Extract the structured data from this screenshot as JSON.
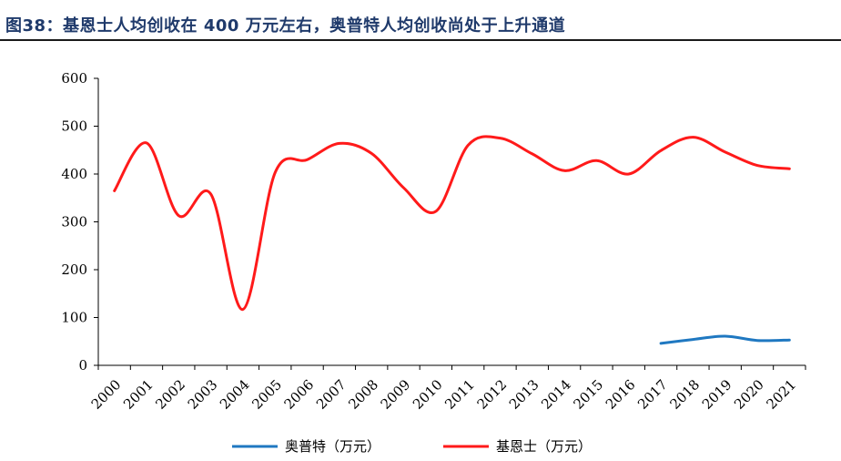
{
  "title": "图38：基恩士人均创收在 400 万元左右，奥普特人均创收尚处于上升通道",
  "chart_data": {
    "type": "line",
    "categories": [
      "2000",
      "2001",
      "2002",
      "2003",
      "2004",
      "2005",
      "2006",
      "2007",
      "2008",
      "2009",
      "2010",
      "2011",
      "2012",
      "2013",
      "2014",
      "2015",
      "2016",
      "2017",
      "2018",
      "2019",
      "2020",
      "2021"
    ],
    "ylim": [
      0,
      600
    ],
    "yticks": [
      "0",
      "100",
      "200",
      "300",
      "400",
      "500",
      "600"
    ],
    "grid": false,
    "legend_position": "bottom-center",
    "series": [
      {
        "name": "奥普特（万元）",
        "color": "#1f78c1",
        "values": [
          null,
          null,
          null,
          null,
          null,
          null,
          null,
          null,
          null,
          null,
          null,
          null,
          null,
          null,
          null,
          null,
          null,
          46,
          54,
          61,
          52,
          53
        ]
      },
      {
        "name": "基恩士（万元）",
        "color": "#ff1a1a",
        "values": [
          365,
          465,
          313,
          358,
          117,
          403,
          430,
          464,
          443,
          371,
          322,
          460,
          475,
          442,
          407,
          428,
          400,
          449,
          477,
          446,
          418,
          411
        ]
      }
    ]
  }
}
